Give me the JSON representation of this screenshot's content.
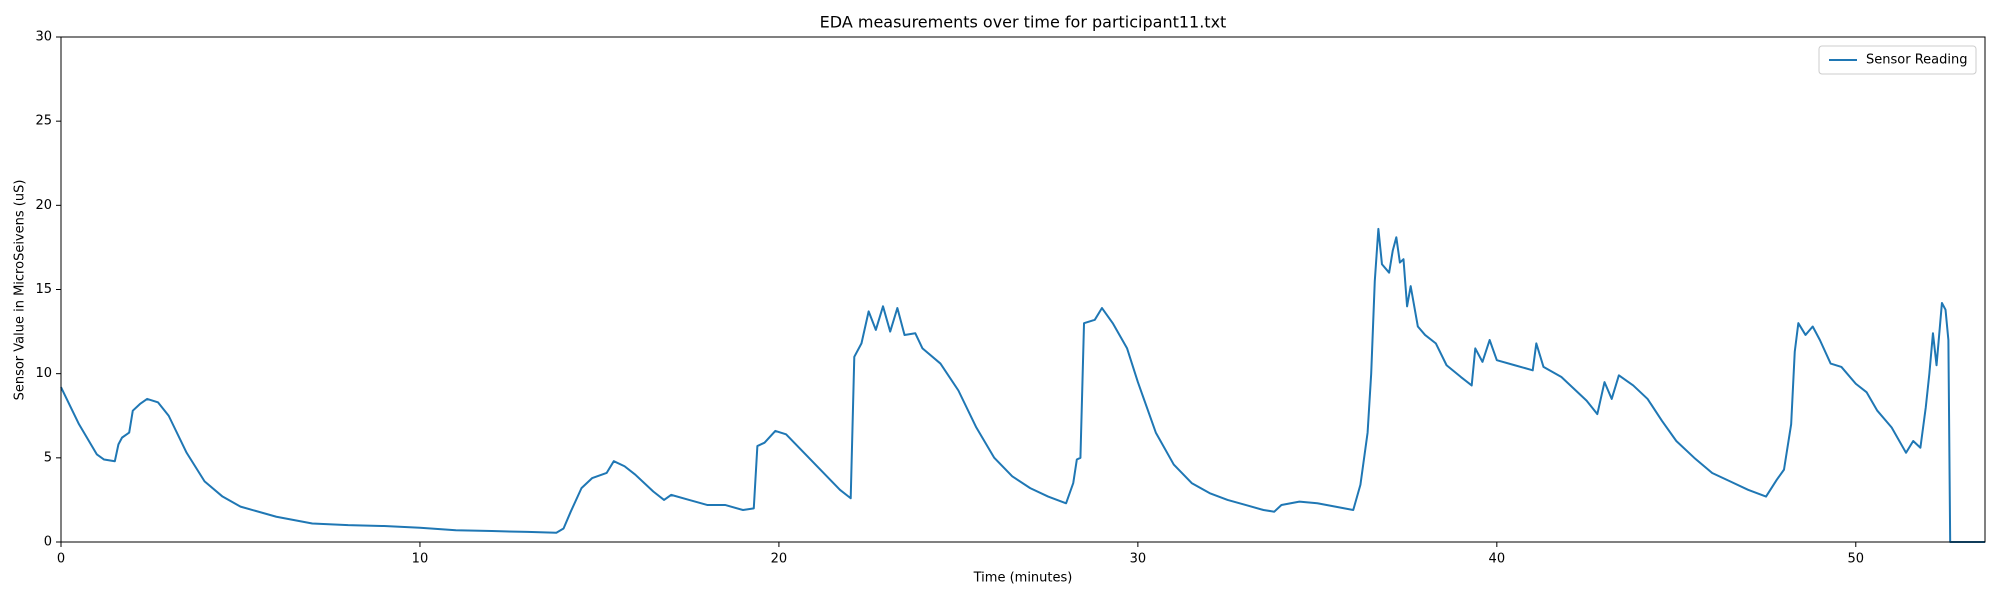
{
  "chart_data": {
    "type": "line",
    "title": "EDA measurements over time for participant11.txt",
    "x_label": "Time (minutes)",
    "y_label": "Sensor Value in MicroSeivens (uS)",
    "x": [
      0,
      0.5,
      1.0,
      1.2,
      1.5,
      1.6,
      1.7,
      1.9,
      2.0,
      2.2,
      2.4,
      2.7,
      3.0,
      3.5,
      4.0,
      4.5,
      5.0,
      6.0,
      7.0,
      8.0,
      9.0,
      10.0,
      11.0,
      12.0,
      13.0,
      13.8,
      14.0,
      14.2,
      14.5,
      14.8,
      15.2,
      15.4,
      15.7,
      16.0,
      16.5,
      16.8,
      17.0,
      17.5,
      18.0,
      18.5,
      19.0,
      19.3,
      19.4,
      19.6,
      19.9,
      20.2,
      20.7,
      21.2,
      21.7,
      22.0,
      22.1,
      22.3,
      22.5,
      22.7,
      22.9,
      23.1,
      23.3,
      23.5,
      23.8,
      24.0,
      24.5,
      25.0,
      25.5,
      26.0,
      26.5,
      27.0,
      27.5,
      28.0,
      28.2,
      28.3,
      28.4,
      28.5,
      28.8,
      29.0,
      29.3,
      29.7,
      30.0,
      30.5,
      31.0,
      31.5,
      32.0,
      32.5,
      33.0,
      33.5,
      33.8,
      34.0,
      34.5,
      35.0,
      35.5,
      36.0,
      36.2,
      36.4,
      36.5,
      36.6,
      36.7,
      36.8,
      37.0,
      37.1,
      37.2,
      37.3,
      37.4,
      37.5,
      37.6,
      37.8,
      38.0,
      38.3,
      38.6,
      39.0,
      39.3,
      39.4,
      39.6,
      39.8,
      40.0,
      40.5,
      41.0,
      41.1,
      41.3,
      41.8,
      42.2,
      42.5,
      42.8,
      43.0,
      43.2,
      43.4,
      43.8,
      44.2,
      44.6,
      45.0,
      45.5,
      46.0,
      46.5,
      47.0,
      47.5,
      47.8,
      48.0,
      48.2,
      48.3,
      48.4,
      48.6,
      48.8,
      49.0,
      49.3,
      49.6,
      50.0,
      50.3,
      50.6,
      51.0,
      51.4,
      51.6,
      51.8,
      51.95,
      52.05,
      52.15,
      52.25,
      52.4,
      52.5,
      52.58,
      52.63,
      53.6
    ],
    "series": [
      {
        "name": "Sensor Reading",
        "color": "#1f77b4",
        "values": [
          9.2,
          7.0,
          5.2,
          4.9,
          4.8,
          5.8,
          6.2,
          6.5,
          7.8,
          8.2,
          8.5,
          8.3,
          7.5,
          5.3,
          3.6,
          2.7,
          2.1,
          1.5,
          1.1,
          1.0,
          0.95,
          0.85,
          0.7,
          0.65,
          0.6,
          0.55,
          0.8,
          1.8,
          3.2,
          3.8,
          4.1,
          4.8,
          4.5,
          4.0,
          3.0,
          2.5,
          2.8,
          2.5,
          2.2,
          2.2,
          1.9,
          2.0,
          5.7,
          5.9,
          6.6,
          6.4,
          5.3,
          4.2,
          3.1,
          2.6,
          11.0,
          11.8,
          13.7,
          12.6,
          14.0,
          12.5,
          13.9,
          12.3,
          12.4,
          11.5,
          10.6,
          9.0,
          6.8,
          5.0,
          3.9,
          3.2,
          2.7,
          2.3,
          3.5,
          4.9,
          5.0,
          13.0,
          13.2,
          13.9,
          13.0,
          11.5,
          9.5,
          6.5,
          4.6,
          3.5,
          2.9,
          2.5,
          2.2,
          1.9,
          1.8,
          2.2,
          2.4,
          2.3,
          2.1,
          1.9,
          3.4,
          6.5,
          10.0,
          15.5,
          18.6,
          16.5,
          16.0,
          17.3,
          18.1,
          16.6,
          16.8,
          14.0,
          15.2,
          12.8,
          12.3,
          11.8,
          10.5,
          9.8,
          9.3,
          11.5,
          10.7,
          12.0,
          10.8,
          10.5,
          10.2,
          11.8,
          10.4,
          9.8,
          9.0,
          8.4,
          7.6,
          9.5,
          8.5,
          9.9,
          9.3,
          8.5,
          7.2,
          6.0,
          5.0,
          4.1,
          3.6,
          3.1,
          2.7,
          3.7,
          4.3,
          7.0,
          11.3,
          13.0,
          12.3,
          12.8,
          12.0,
          10.6,
          10.4,
          9.4,
          8.9,
          7.8,
          6.8,
          5.3,
          6.0,
          5.6,
          8.0,
          10.0,
          12.4,
          10.5,
          14.2,
          13.8,
          12.0,
          0,
          0
        ]
      }
    ],
    "xlim": [
      0,
      53.6
    ],
    "ylim": [
      0,
      30
    ],
    "xticks": [
      0,
      10,
      20,
      30,
      40,
      50
    ],
    "yticks": [
      0,
      5,
      10,
      15,
      20,
      25,
      30
    ],
    "grid": false,
    "legend": "upper right"
  }
}
